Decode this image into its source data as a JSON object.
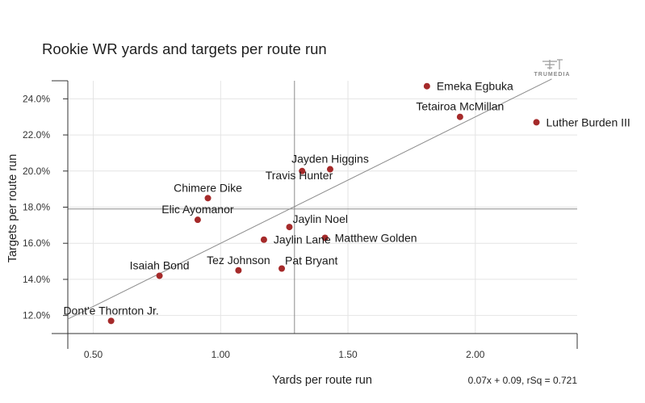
{
  "chart_data": {
    "type": "scatter",
    "title": "Rookie WR yards and targets per route run",
    "xlabel": "Yards per route run",
    "ylabel": "Targets per route run",
    "xlim": [
      0.4,
      2.4
    ],
    "ylim": [
      0.11,
      0.25
    ],
    "x_ticks": [
      0.5,
      1.0,
      1.5,
      2.0
    ],
    "x_tick_labels": [
      "0.50",
      "1.00",
      "1.50",
      "2.00"
    ],
    "y_ticks": [
      0.12,
      0.14,
      0.16,
      0.18,
      0.2,
      0.22,
      0.24
    ],
    "y_tick_labels": [
      "12.0%",
      "14.0%",
      "16.0%",
      "18.0%",
      "20.0%",
      "22.0%",
      "24.0%"
    ],
    "grid": true,
    "reference_lines": {
      "x": 1.29,
      "y": 0.179
    },
    "trendline": {
      "slope": 0.07,
      "intercept": 0.09,
      "x_range": [
        0.4,
        2.3
      ]
    },
    "equation_label": "0.07x + 0.09, rSq = 0.721",
    "point_color": "#a52a2a",
    "points": [
      {
        "name": "Emeka Egbuka",
        "x": 1.81,
        "y": 0.247,
        "label_pos": "right"
      },
      {
        "name": "Tetairoa McMillan",
        "x": 1.94,
        "y": 0.23,
        "label_pos": "above"
      },
      {
        "name": "Luther Burden III",
        "x": 2.24,
        "y": 0.227,
        "label_pos": "right"
      },
      {
        "name": "Jayden Higgins",
        "x": 1.43,
        "y": 0.201,
        "label_pos": "above"
      },
      {
        "name": "Travis Hunter",
        "x": 1.32,
        "y": 0.2,
        "label_pos": "below-left"
      },
      {
        "name": "Chimere Dike",
        "x": 0.95,
        "y": 0.185,
        "label_pos": "above"
      },
      {
        "name": "Elic Ayomanor",
        "x": 0.91,
        "y": 0.173,
        "label_pos": "above"
      },
      {
        "name": "Jaylin Noel",
        "x": 1.27,
        "y": 0.169,
        "label_pos": "right-up"
      },
      {
        "name": "Matthew Golden",
        "x": 1.41,
        "y": 0.163,
        "label_pos": "right"
      },
      {
        "name": "Jaylin Lane",
        "x": 1.17,
        "y": 0.162,
        "label_pos": "right"
      },
      {
        "name": "Pat Bryant",
        "x": 1.24,
        "y": 0.146,
        "label_pos": "right-up"
      },
      {
        "name": "Tez Johnson",
        "x": 1.07,
        "y": 0.145,
        "label_pos": "above"
      },
      {
        "name": "Isaiah Bond",
        "x": 0.76,
        "y": 0.142,
        "label_pos": "above"
      },
      {
        "name": "Dont'e Thornton Jr.",
        "x": 0.57,
        "y": 0.117,
        "label_pos": "above"
      }
    ]
  },
  "logo": {
    "text": "TRUMEDIA"
  }
}
